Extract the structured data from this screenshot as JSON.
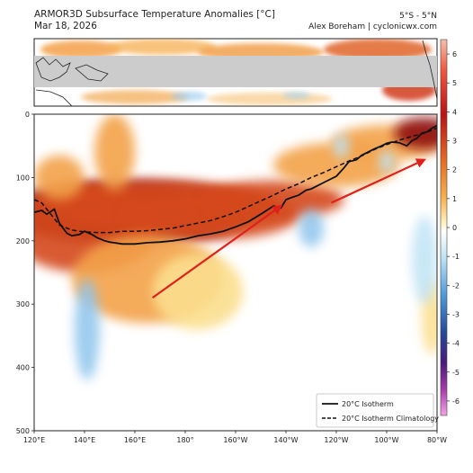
{
  "header": {
    "title": "ARMOR3D Subsurface Temperature Anomalies [°C]",
    "date": "Mar 18, 2026",
    "region": "5°S - 5°N",
    "credit": "Alex Boreham | cyclonicwx.com"
  },
  "colors": {
    "warm_deep": "#8e0c0c",
    "warm_mid": "#d44a1c",
    "warm_light": "#f3a24a",
    "warm_pale": "#fbdf8e",
    "cool_pale": "#bfe3f5",
    "cool_mid": "#8ec5ec",
    "land_mask": "#cccccc",
    "arrow": "#e0201a"
  },
  "chart_data": {
    "type": "heatmap",
    "title": "ARMOR3D Subsurface Temperature Anomalies [°C]",
    "xlabel": "",
    "ylabel": "",
    "x_tick_labels": [
      "120°E",
      "140°E",
      "160°E",
      "180°",
      "160°W",
      "140°W",
      "120°W",
      "100°W",
      "80°W"
    ],
    "xlim": [
      120,
      280
    ],
    "y_ticks": [
      0,
      100,
      200,
      300,
      400,
      500
    ],
    "ylim": [
      500,
      0
    ],
    "colorbar": {
      "ticks": [
        6,
        5,
        4,
        3,
        2,
        1,
        0,
        -1,
        -2,
        -3,
        -4,
        -5,
        -6
      ],
      "range": [
        -6.5,
        6.5
      ]
    },
    "legend": {
      "position": "bottom-right",
      "entries": [
        "20°C Isotherm",
        "20°C Isotherm Climatology"
      ]
    },
    "series": [
      {
        "name": "20°C Isotherm",
        "style": "solid",
        "x": [
          120,
          123,
          125,
          128,
          130,
          133,
          135,
          138,
          140,
          143,
          145,
          148,
          150,
          155,
          160,
          165,
          170,
          175,
          180,
          185,
          190,
          195,
          200,
          205,
          210,
          215,
          218,
          220,
          222,
          225,
          228,
          230,
          235,
          240,
          243,
          245,
          248,
          250,
          255,
          258,
          260,
          262,
          265,
          268,
          270,
          272,
          274,
          276,
          278,
          280
        ],
        "y": [
          155,
          152,
          158,
          150,
          172,
          188,
          192,
          190,
          185,
          190,
          195,
          200,
          202,
          205,
          205,
          203,
          202,
          200,
          197,
          192,
          189,
          185,
          178,
          170,
          158,
          145,
          148,
          135,
          132,
          128,
          120,
          118,
          108,
          98,
          85,
          75,
          72,
          65,
          55,
          50,
          46,
          44,
          45,
          50,
          42,
          38,
          30,
          28,
          22,
          18
        ]
      },
      {
        "name": "20°C Isotherm Climatology",
        "style": "dashed",
        "x": [
          120,
          123,
          125,
          128,
          130,
          133,
          135,
          138,
          140,
          145,
          150,
          155,
          160,
          165,
          170,
          175,
          180,
          185,
          190,
          195,
          200,
          205,
          210,
          215,
          220,
          225,
          230,
          235,
          240,
          245,
          250,
          255,
          260,
          265,
          270,
          275,
          280
        ],
        "y": [
          135,
          140,
          150,
          165,
          175,
          180,
          183,
          185,
          186,
          187,
          187,
          185,
          185,
          184,
          182,
          180,
          176,
          172,
          168,
          162,
          155,
          146,
          137,
          128,
          118,
          110,
          100,
          92,
          83,
          74,
          66,
          56,
          48,
          41,
          35,
          30,
          22
        ]
      }
    ],
    "heatmap_blobs": [
      {
        "x": 157,
        "y": 155,
        "rx": 50,
        "ry": 50,
        "value": 3.5
      },
      {
        "x": 140,
        "y": 180,
        "rx": 30,
        "ry": 70,
        "value": 2.2
      },
      {
        "x": 170,
        "y": 145,
        "rx": 45,
        "ry": 40,
        "value": 3
      },
      {
        "x": 190,
        "y": 160,
        "rx": 35,
        "ry": 38,
        "value": 2.5
      },
      {
        "x": 215,
        "y": 135,
        "rx": 28,
        "ry": 30,
        "value": 2.5
      },
      {
        "x": 165,
        "y": 260,
        "rx": 30,
        "ry": 70,
        "value": 1.5
      },
      {
        "x": 185,
        "y": 280,
        "rx": 18,
        "ry": 60,
        "value": 1
      },
      {
        "x": 240,
        "y": 80,
        "rx": 25,
        "ry": 35,
        "value": 2
      },
      {
        "x": 260,
        "y": 45,
        "rx": 22,
        "ry": 28,
        "value": 2
      },
      {
        "x": 275,
        "y": 30,
        "rx": 12,
        "ry": 25,
        "value": 3.5
      },
      {
        "x": 152,
        "y": 60,
        "rx": 8,
        "ry": 60,
        "value": 1.5
      },
      {
        "x": 130,
        "y": 100,
        "rx": 10,
        "ry": 35,
        "value": 1.5
      },
      {
        "x": 278,
        "y": 320,
        "rx": 4,
        "ry": 60,
        "value": 0.8
      },
      {
        "x": 141,
        "y": 340,
        "rx": 5,
        "ry": 80,
        "value": -1.5
      },
      {
        "x": 230,
        "y": 180,
        "rx": 5,
        "ry": 30,
        "value": -1.5
      },
      {
        "x": 242,
        "y": 50,
        "rx": 3,
        "ry": 20,
        "value": -1
      },
      {
        "x": 260,
        "y": 75,
        "rx": 3,
        "ry": 18,
        "value": -1
      },
      {
        "x": 275,
        "y": 230,
        "rx": 5,
        "ry": 70,
        "value": -1
      }
    ],
    "annotations": [
      {
        "type": "arrow",
        "color": "#e0201a",
        "from": {
          "x": 167,
          "y": 290
        },
        "to": {
          "x": 218,
          "y": 145
        }
      },
      {
        "type": "arrow",
        "color": "#e0201a",
        "from": {
          "x": 238,
          "y": 140
        },
        "to": {
          "x": 275,
          "y": 72
        }
      }
    ]
  }
}
